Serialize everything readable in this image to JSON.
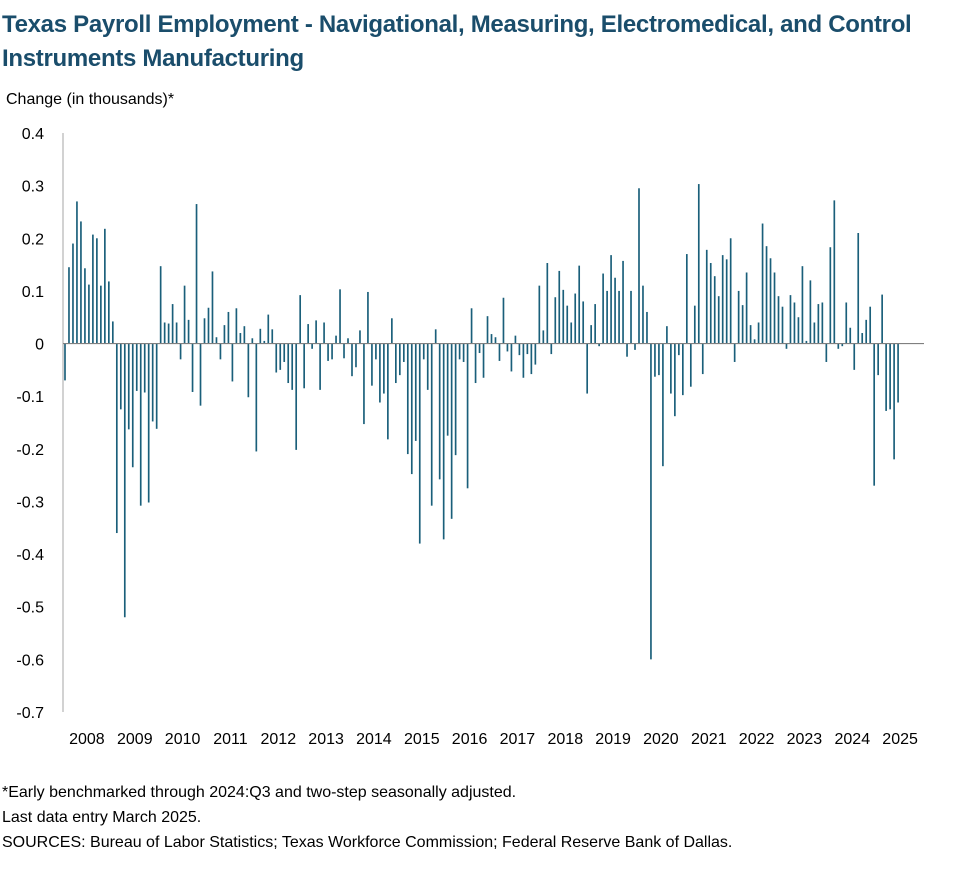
{
  "title": "Texas Payroll Employment - Navigational, Measuring, Electromedical, and Control Instruments Manufacturing",
  "footnotes": [
    "*Early benchmarked through 2024:Q3 and two-step seasonally adjusted.",
    "Last data entry March 2025.",
    "SOURCES:  Bureau of Labor Statistics; Texas Workforce Commission; Federal Reserve Bank of Dallas."
  ],
  "chart_data": {
    "type": "bar",
    "title": "Texas Payroll Employment - Navigational, Measuring, Electromedical, and Control Instruments Manufacturing",
    "ylabel": "Change (in thousands)*",
    "xlabel": "",
    "ylim": [
      -0.7,
      0.4
    ],
    "y_ticks": [
      "0.4",
      "0.3",
      "0.2",
      "0.1",
      "0",
      "-0.1",
      "-0.2",
      "-0.3",
      "-0.4",
      "-0.5",
      "-0.6",
      "-0.7"
    ],
    "y_tick_values": [
      0.4,
      0.3,
      0.2,
      0.1,
      0,
      -0.1,
      -0.2,
      -0.3,
      -0.4,
      -0.5,
      -0.6,
      -0.7
    ],
    "x_ticks": [
      "2008",
      "2009",
      "2010",
      "2011",
      "2012",
      "2013",
      "2014",
      "2015",
      "2016",
      "2017",
      "2018",
      "2019",
      "2020",
      "2021",
      "2022",
      "2023",
      "2024",
      "2025"
    ],
    "start": "2008-01",
    "end": "2025-03",
    "frequency": "monthly",
    "bar_color": "#1a5f7a",
    "grid": false,
    "values": [
      -0.07,
      0.145,
      0.19,
      0.27,
      0.232,
      0.143,
      0.112,
      0.207,
      0.2,
      0.11,
      0.218,
      0.118,
      0.042,
      -0.36,
      -0.125,
      -0.52,
      -0.163,
      -0.235,
      -0.09,
      -0.308,
      -0.093,
      -0.302,
      -0.148,
      -0.162,
      0.147,
      0.04,
      0.038,
      0.075,
      0.04,
      -0.03,
      0.11,
      0.045,
      -0.092,
      0.265,
      -0.118,
      0.048,
      0.068,
      0.137,
      0.012,
      -0.03,
      0.035,
      0.06,
      -0.072,
      0.067,
      0.02,
      0.033,
      -0.102,
      0.01,
      -0.205,
      0.028,
      0.005,
      0.055,
      0.027,
      -0.055,
      -0.05,
      -0.035,
      -0.075,
      -0.088,
      -0.202,
      0.092,
      -0.085,
      0.037,
      -0.01,
      0.044,
      -0.088,
      0.04,
      -0.033,
      -0.03,
      0.015,
      0.103,
      -0.028,
      0.01,
      -0.062,
      -0.045,
      0.025,
      -0.153,
      0.098,
      -0.08,
      -0.03,
      -0.112,
      -0.095,
      -0.182,
      0.048,
      -0.075,
      -0.06,
      -0.035,
      -0.21,
      -0.248,
      -0.185,
      -0.38,
      -0.03,
      -0.088,
      -0.308,
      0.027,
      -0.258,
      -0.372,
      -0.175,
      -0.333,
      -0.212,
      -0.03,
      -0.035,
      -0.275,
      0.067,
      -0.075,
      -0.018,
      -0.065,
      0.052,
      0.018,
      0.012,
      -0.033,
      0.087,
      -0.015,
      -0.053,
      0.015,
      -0.022,
      -0.065,
      -0.02,
      -0.058,
      -0.04,
      0.11,
      0.025,
      0.153,
      -0.02,
      0.088,
      0.138,
      0.102,
      0.072,
      0.04,
      0.095,
      0.148,
      0.08,
      -0.095,
      0.035,
      0.075,
      -0.005,
      0.133,
      0.1,
      0.168,
      0.125,
      0.1,
      0.157,
      -0.025,
      0.1,
      -0.012,
      0.295,
      0.11,
      0.06,
      -0.6,
      -0.063,
      -0.06,
      -0.233,
      0.033,
      -0.095,
      -0.138,
      -0.022,
      -0.098,
      0.17,
      -0.082,
      0.072,
      0.303,
      -0.058,
      0.178,
      0.153,
      0.128,
      0.09,
      0.168,
      0.16,
      0.2,
      -0.035,
      0.1,
      0.073,
      0.135,
      0.035,
      0.008,
      0.04,
      0.228,
      0.185,
      0.162,
      0.135,
      0.09,
      0.07,
      -0.01,
      0.092,
      0.078,
      0.05,
      0.147,
      0.005,
      0.12,
      0.04,
      0.075,
      0.078,
      -0.035,
      0.183,
      0.272,
      -0.01,
      -0.005,
      0.078,
      0.03,
      -0.05,
      0.21,
      0.02,
      0.045,
      0.07,
      -0.27,
      -0.06,
      0.093,
      -0.128,
      -0.125,
      -0.22,
      -0.112
    ]
  }
}
